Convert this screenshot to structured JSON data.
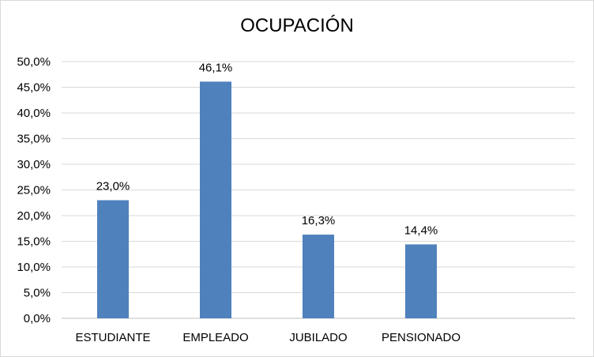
{
  "chart_data": {
    "type": "bar",
    "title": "OCUPACIÓN",
    "categories": [
      "ESTUDIANTE",
      "EMPLEADO",
      "JUBILADO",
      "PENSIONADO"
    ],
    "values": [
      23.0,
      46.1,
      16.3,
      14.4
    ],
    "data_labels": [
      "23,0%",
      "46,1%",
      "16,3%",
      "14,4%"
    ],
    "y_ticks": [
      "0,0%",
      "5,0%",
      "10,0%",
      "15,0%",
      "20,0%",
      "25,0%",
      "30,0%",
      "35,0%",
      "40,0%",
      "45,0%",
      "50,0%"
    ],
    "ylim": [
      0,
      50
    ],
    "grid": true,
    "bar_color": "#4f81bd",
    "grid_color": "#d9d9d9"
  }
}
